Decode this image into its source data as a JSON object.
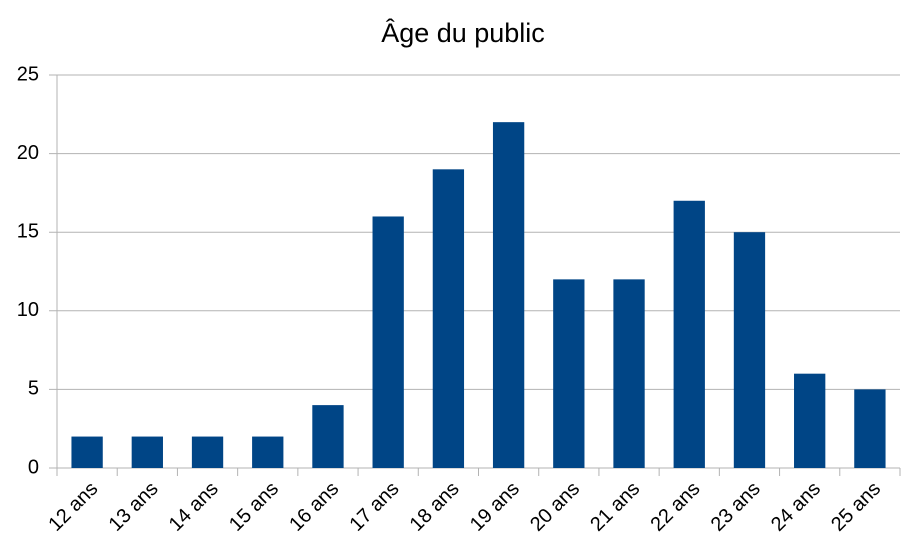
{
  "chart_data": {
    "type": "bar",
    "title": "Âge du public",
    "categories": [
      "12 ans",
      "13 ans",
      "14 ans",
      "15 ans",
      "16 ans",
      "17 ans",
      "18 ans",
      "19 ans",
      "20 ans",
      "21 ans",
      "22 ans",
      "23 ans",
      "24 ans",
      "25 ans"
    ],
    "values": [
      2,
      2,
      2,
      2,
      4,
      16,
      19,
      22,
      12,
      12,
      17,
      15,
      6,
      5
    ],
    "color": "#004586",
    "ylim": [
      0,
      25
    ],
    "yticks": [
      0,
      5,
      10,
      15,
      20,
      25
    ],
    "grid": true
  }
}
